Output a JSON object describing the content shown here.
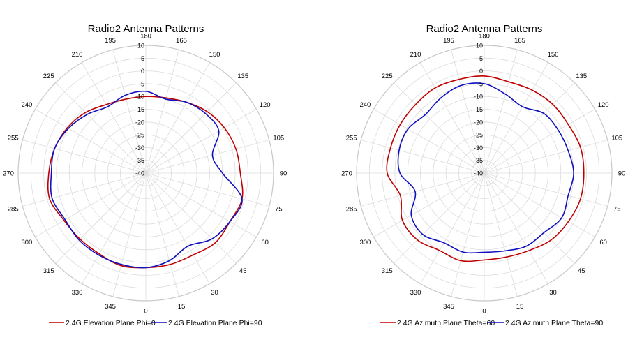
{
  "charts": [
    {
      "title": "Radio2 Antenna Patterns",
      "chart_data": {
        "type": "polar-line",
        "title": "Radio2 Antenna Patterns",
        "angle_ticks": [
          "180",
          "195",
          "210",
          "225",
          "240",
          "255",
          "270",
          "285",
          "300",
          "315",
          "330",
          "345",
          "0",
          "15",
          "30",
          "45",
          "60",
          "75",
          "90",
          "105",
          "120",
          "135",
          "150",
          "165"
        ],
        "radial_ticks": [
          "10",
          "5",
          "0",
          "-5",
          "-10",
          "-15",
          "-20",
          "-25",
          "-30",
          "-35",
          "-40"
        ],
        "rlim": [
          -40,
          10
        ],
        "angle_direction": "counterclockwise",
        "angle_zero": "bottom",
        "grid": true,
        "legend_position": "bottom",
        "series": [
          {
            "name": "2.4G Elevation Plane Phi=0",
            "color": "#c00000",
            "angles": [
              0,
              15,
              30,
              45,
              60,
              75,
              90,
              105,
              120,
              135,
              150,
              165,
              180,
              195,
              210,
              225,
              240,
              255,
              270,
              285,
              300,
              315,
              330,
              345
            ],
            "values": [
              -3,
              -3,
              -3,
              -1.5,
              -2,
              -1,
              -3,
              -3.5,
              -4.5,
              -6,
              -8,
              -9.5,
              -10,
              -10,
              -9,
              -6.5,
              -4.5,
              -3,
              -2,
              -1,
              -3,
              -3.5,
              -3.5,
              -2.5
            ]
          },
          {
            "name": "2.4G Elevation Plane Phi=90",
            "color": "#1010c0",
            "angles": [
              0,
              15,
              30,
              45,
              60,
              75,
              90,
              105,
              120,
              135,
              150,
              165,
              180,
              195,
              210,
              225,
              240,
              255,
              270,
              285,
              300,
              315,
              330,
              345
            ],
            "values": [
              -3,
              -4.5,
              -7,
              -3.5,
              -2,
              -1,
              -10,
              -13,
              -7,
              -7,
              -8,
              -10,
              -8,
              -8.5,
              -10,
              -7.5,
              -5,
              -3,
              -3,
              -2,
              -3.5,
              -3,
              -3,
              -3
            ]
          }
        ]
      }
    },
    {
      "title": "Radio2 Antenna Patterns",
      "chart_data": {
        "type": "polar-line",
        "title": "Radio2 Antenna Patterns",
        "angle_ticks": [
          "180",
          "195",
          "210",
          "225",
          "240",
          "255",
          "270",
          "285",
          "300",
          "315",
          "330",
          "345",
          "0",
          "15",
          "30",
          "45",
          "60",
          "75",
          "90",
          "105",
          "120",
          "135",
          "150",
          "165"
        ],
        "radial_ticks": [
          "10",
          "5",
          "0",
          "-5",
          "-10",
          "-15",
          "-20",
          "-25",
          "-30",
          "-35",
          "-40"
        ],
        "rlim": [
          -40,
          10
        ],
        "angle_direction": "counterclockwise",
        "angle_zero": "bottom",
        "grid": true,
        "legend_position": "bottom",
        "series": [
          {
            "name": "2.4G Azimuth Plane Theta=60",
            "color": "#c00000",
            "angles": [
              0,
              15,
              30,
              45,
              60,
              75,
              90,
              105,
              120,
              135,
              150,
              165,
              180,
              195,
              210,
              225,
              240,
              255,
              270,
              285,
              300,
              315,
              330,
              345
            ],
            "values": [
              -6,
              -6,
              -5,
              -3,
              -2,
              -1,
              -1,
              -1,
              -2,
              -2,
              -2.5,
              -3,
              -2,
              -2,
              -1.5,
              -2,
              -2,
              -2,
              -2,
              -6,
              -3,
              -3,
              -5,
              -4.5
            ]
          },
          {
            "name": "2.4G Azimuth Plane Theta=90",
            "color": "#1010c0",
            "angles": [
              0,
              15,
              30,
              45,
              60,
              75,
              90,
              105,
              120,
              135,
              150,
              165,
              180,
              195,
              210,
              225,
              240,
              255,
              270,
              285,
              300,
              315,
              330,
              345
            ],
            "values": [
              -9,
              -8.5,
              -7,
              -7,
              -5,
              -6,
              -5,
              -6,
              -6.5,
              -7,
              -10,
              -8,
              -5,
              -4.5,
              -6,
              -7.5,
              -5.5,
              -5.5,
              -7,
              -12,
              -7,
              -6,
              -8.5,
              -8
            ]
          }
        ]
      }
    }
  ]
}
